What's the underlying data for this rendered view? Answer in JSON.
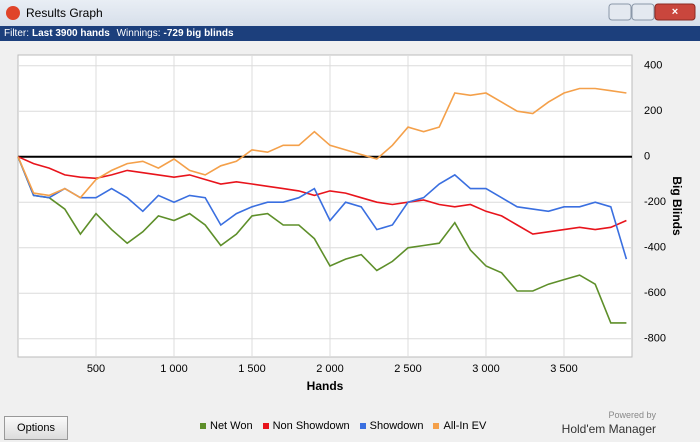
{
  "window": {
    "title": "Results Graph"
  },
  "filter": {
    "label": "Filter:",
    "hands": "Last 3900 hands",
    "winnings_label": "Winnings:",
    "winnings": "-729 big blinds"
  },
  "chart_data": {
    "type": "line",
    "x_label": "Hands",
    "y_label": "Big Blinds",
    "x": [
      0,
      100,
      200,
      300,
      400,
      500,
      600,
      700,
      800,
      900,
      1000,
      1100,
      1200,
      1300,
      1400,
      1500,
      1600,
      1700,
      1800,
      1900,
      2000,
      2100,
      2200,
      2300,
      2400,
      2500,
      2600,
      2700,
      2800,
      2900,
      3000,
      3100,
      3200,
      3300,
      3400,
      3500,
      3600,
      3700,
      3800,
      3900
    ],
    "series": [
      {
        "name": "Net Won",
        "color": "#5e8f2a",
        "values": [
          0,
          -170,
          -180,
          -230,
          -340,
          -250,
          -320,
          -380,
          -330,
          -260,
          -280,
          -250,
          -300,
          -390,
          -340,
          -260,
          -250,
          -300,
          -300,
          -360,
          -480,
          -450,
          -430,
          -500,
          -460,
          -400,
          -390,
          -380,
          -290,
          -410,
          -480,
          -510,
          -590,
          -590,
          -560,
          -540,
          -520,
          -560,
          -730,
          -730
        ]
      },
      {
        "name": "Non Showdown",
        "color": "#e8141c",
        "values": [
          0,
          -30,
          -50,
          -80,
          -90,
          -95,
          -80,
          -60,
          -70,
          -80,
          -90,
          -80,
          -100,
          -120,
          -110,
          -120,
          -130,
          -140,
          -150,
          -170,
          -150,
          -160,
          -180,
          -200,
          -210,
          -200,
          -190,
          -210,
          -220,
          -210,
          -240,
          -260,
          -300,
          -340,
          -330,
          -320,
          -310,
          -320,
          -310,
          -280
        ]
      },
      {
        "name": "Showdown",
        "color": "#3a6fe0",
        "values": [
          0,
          -170,
          -180,
          -140,
          -180,
          -180,
          -140,
          -180,
          -240,
          -170,
          -200,
          -170,
          -180,
          -300,
          -250,
          -220,
          -200,
          -200,
          -180,
          -140,
          -280,
          -200,
          -220,
          -320,
          -300,
          -200,
          -180,
          -120,
          -80,
          -140,
          -140,
          -180,
          -220,
          -230,
          -240,
          -220,
          -220,
          -200,
          -220,
          -450
        ]
      },
      {
        "name": "All-In EV",
        "color": "#f4a04a",
        "values": [
          0,
          -160,
          -170,
          -140,
          -180,
          -100,
          -60,
          -30,
          -20,
          -50,
          -10,
          -60,
          -80,
          -40,
          -20,
          30,
          20,
          50,
          50,
          110,
          50,
          30,
          10,
          -10,
          50,
          130,
          110,
          130,
          280,
          270,
          280,
          240,
          200,
          190,
          240,
          280,
          300,
          300,
          290,
          280
        ]
      }
    ],
    "xlim": [
      0,
      3936
    ],
    "ylim": [
      -880,
      447
    ],
    "xticks": [
      500,
      {
        "value": 1000,
        "label": "1 000"
      },
      {
        "value": 1500,
        "label": "1 500"
      },
      {
        "value": 2000,
        "label": "2 000"
      },
      {
        "value": 2500,
        "label": "2 500"
      },
      {
        "value": 3000,
        "label": "3 000"
      },
      {
        "value": 3500,
        "label": "3 500"
      }
    ],
    "yticks": [
      -800,
      -600,
      -400,
      -200,
      0,
      200,
      400
    ],
    "grid": true,
    "zero_line": true,
    "legend": "bottom"
  },
  "footer": {
    "button": "Options",
    "powered_by": "Powered by",
    "brand": "Hold'em Manager"
  }
}
